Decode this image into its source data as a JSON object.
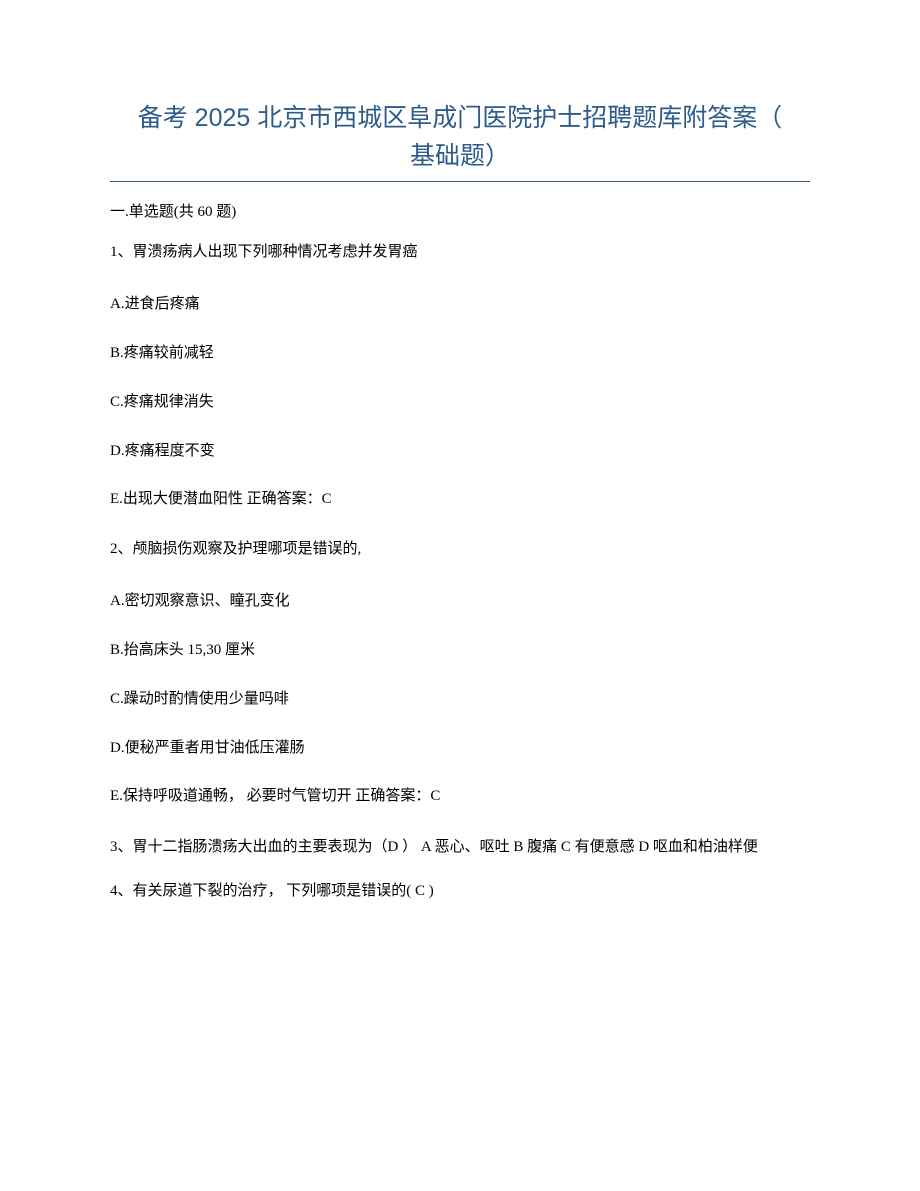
{
  "title_line1": "备考 2025 北京市西城区阜成门医院护士招聘题库附答案（",
  "title_line2": "基础题）",
  "section_header": "一.单选题(共 60 题)",
  "q1": {
    "stem": "1、胃溃疡病人出现下列哪种情况考虑并发胃癌",
    "a": "A.进食后疼痛",
    "b": "B.疼痛较前减轻",
    "c": "C.疼痛规律消失",
    "d": "D.疼痛程度不变",
    "e": "E.出现大便潜血阳性 正确答案：C"
  },
  "q2": {
    "stem": "2、颅脑损伤观察及护理哪项是错误的,",
    "a": "A.密切观察意识、瞳孔变化",
    "b": "B.抬高床头 15,30 厘米",
    "c": "C.躁动时酌情使用少量吗啡",
    "d": "D.便秘严重者用甘油低压灌肠",
    "e": "E.保持呼吸道通畅， 必要时气管切开 正确答案：C"
  },
  "q3": "3、胃十二指肠溃疡大出血的主要表现为（D ）    A 恶心、呕吐        B 腹痛 C 有便意感 D 呕血和柏油样便",
  "q4": "4、有关尿道下裂的治疗， 下列哪项是错误的( C )",
  "colors": {
    "title": "#2e5c8a",
    "text": "#000000",
    "background": "#ffffff",
    "hr": "#2e5c8a"
  }
}
